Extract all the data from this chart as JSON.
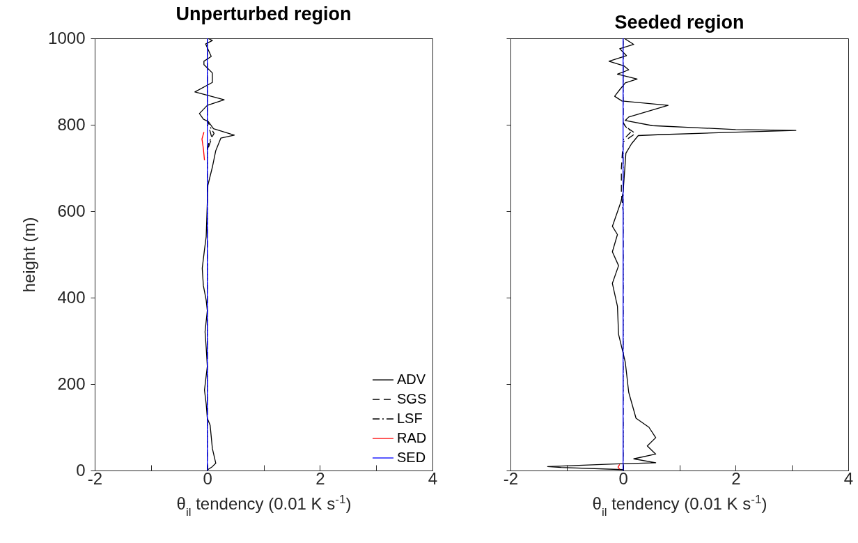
{
  "chart_data": [
    {
      "type": "line",
      "title": "Unperturbed region",
      "xlabel": "θ$_{il}$ tendency (0.01 K s$^{-1}$)",
      "ylabel": "height (m)",
      "xlim": [
        -2,
        4
      ],
      "xticks": [
        -2,
        {
          "value": -1,
          "label": null
        },
        0,
        {
          "value": 1,
          "label": null
        },
        2,
        {
          "value": 3,
          "label": null
        },
        4
      ],
      "ylim": [
        0,
        1000
      ],
      "yticks": [
        0,
        200,
        400,
        600,
        800,
        1000
      ],
      "grid": false,
      "legend": "bottom right",
      "series": [
        {
          "name": "ADV",
          "color": "#000000",
          "line_style": "solid",
          "x": [
            0.01,
            0.09,
            -0.03,
            0.07,
            -0.06,
            -0.06,
            0.09,
            0.09,
            -0.22,
            0.3,
            0.0,
            -0.14,
            -0.07,
            0.02,
            0.11,
            0.48,
            0.24,
            0.15,
            0.09,
            0.05,
            0.01,
            -0.02,
            -0.05,
            -0.09,
            -0.07,
            -0.02,
            0.0,
            -0.04,
            -0.02,
            0.0,
            -0.05,
            -0.02,
            0.0,
            0.05,
            0.09,
            0.15,
            0.09,
            0.01
          ],
          "values": [
            1000,
            995,
            987,
            958,
            947,
            939,
            920,
            898,
            876,
            858,
            845,
            826,
            813,
            807,
            791,
            776,
            769,
            740,
            702,
            681,
            660,
            541,
            511,
            468,
            428,
            394,
            370,
            321,
            285,
            241,
            186,
            154,
            121,
            105,
            51,
            17,
            9,
            2
          ]
        },
        {
          "name": "SGS",
          "color": "#000000",
          "line_style": "dashed",
          "x": [
            0,
            0,
            0.08,
            0.05,
            0,
            0
          ],
          "values": [
            0,
            740,
            770,
            785,
            800,
            1000
          ]
        },
        {
          "name": "LSF",
          "color": "#000000",
          "line_style": "dashdot",
          "x": [
            0,
            0,
            0.03,
            0.12,
            0.05,
            0,
            0
          ],
          "values": [
            0,
            740,
            760,
            780,
            795,
            810,
            1000
          ]
        },
        {
          "name": "RAD",
          "color": "#ff0000",
          "line_style": "solid",
          "x": [
            -0.05,
            -0.07,
            -0.095,
            -0.06
          ],
          "values": [
            718,
            745,
            767,
            783
          ]
        },
        {
          "name": "SED",
          "color": "#0000ff",
          "line_style": "solid",
          "x": [
            0,
            0
          ],
          "values": [
            0,
            1000
          ]
        }
      ]
    },
    {
      "type": "line",
      "title": "Seeded region",
      "xlabel": "θ$_{il}$ tendency (0.01 K s$^{-1}$)",
      "tick_labels": "x",
      "xlim": [
        -2,
        4
      ],
      "xticks": [
        -2,
        {
          "value": -1,
          "label": null
        },
        0,
        {
          "value": 1,
          "label": null
        },
        2,
        {
          "value": 3,
          "label": null
        },
        4
      ],
      "ylim": [
        0,
        1000
      ],
      "yticks": [
        0,
        200,
        400,
        600,
        800,
        1000
      ],
      "grid": false,
      "legend": false,
      "series": [
        {
          "color": "#000000",
          "line_style": "solid",
          "x": [
            0.02,
            0.19,
            -0.06,
            0.06,
            -0.25,
            0.02,
            0.1,
            -0.1,
            0.25,
            0.04,
            -0.06,
            -0.15,
            -0.02,
            0.8,
            0.1,
            0.04,
            0.52,
            2.0,
            3.07,
            2.0,
            0.62,
            0.27,
            0.15,
            0.05,
            0.03,
            0.0,
            -0.04,
            -0.19,
            -0.1,
            -0.19,
            -0.08,
            -0.19,
            -0.1,
            -0.08,
            -0.02,
            0.04,
            0.1,
            0.23,
            0.46,
            0.58,
            0.43,
            0.58,
            0.19,
            0.58,
            -0.15,
            -1.34,
            -1.1,
            0.0
          ],
          "values": [
            1000,
            986,
            976,
            960,
            947,
            936,
            927,
            917,
            906,
            897,
            881,
            866,
            855,
            845,
            818,
            810,
            798,
            789,
            787,
            783,
            777,
            775,
            756,
            734,
            697,
            643,
            621,
            565,
            546,
            506,
            474,
            433,
            380,
            315,
            283,
            250,
            181,
            121,
            100,
            76,
            57,
            38,
            27,
            18,
            15,
            9,
            7,
            2
          ]
        },
        {
          "color": "#000000",
          "line_style": "dashed",
          "x": [
            0,
            0,
            -0.03,
            -0.03,
            0,
            0.22,
            0.05,
            0,
            0
          ],
          "values": [
            0,
            600,
            640,
            700,
            760,
            780,
            795,
            805,
            1000
          ]
        },
        {
          "color": "#000000",
          "line_style": "dashdot",
          "x": [
            0,
            0,
            0.15,
            0.05,
            0,
            0
          ],
          "values": [
            0,
            765,
            785,
            795,
            805,
            1000
          ]
        },
        {
          "color": "#ff0000",
          "line_style": "solid",
          "x": [
            -0.06,
            -0.09,
            -0.06
          ],
          "values": [
            3,
            8,
            14
          ]
        },
        {
          "color": "#0000ff",
          "line_style": "solid",
          "x": [
            0,
            0
          ],
          "values": [
            0,
            1000
          ]
        }
      ]
    }
  ]
}
